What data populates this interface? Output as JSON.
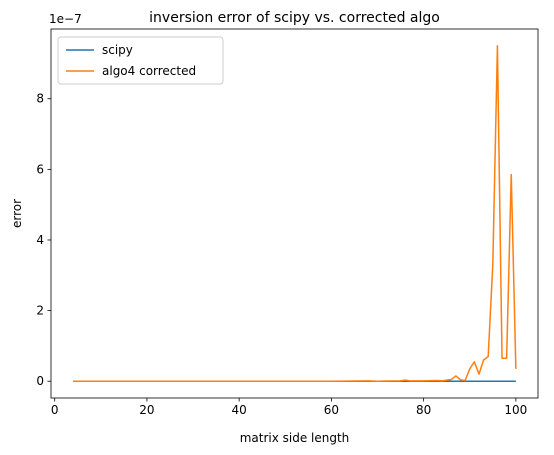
{
  "chart_data": {
    "type": "line",
    "title": "inversion error of scipy vs. corrected algo",
    "xlabel": "matrix side length",
    "ylabel": "error",
    "offset_text": "1e−7",
    "y_scale_factor": 1e-07,
    "xlim": [
      -0.8,
      104.8
    ],
    "ylim": [
      -0.475,
      9.975
    ],
    "x_ticks": [
      0,
      20,
      40,
      60,
      80,
      100
    ],
    "x_tick_labels": [
      "0",
      "20",
      "40",
      "60",
      "80",
      "100"
    ],
    "y_ticks": [
      0,
      2,
      4,
      6,
      8
    ],
    "y_tick_labels": [
      "0",
      "2",
      "4",
      "6",
      "8"
    ],
    "grid": false,
    "legend_position": "top-left",
    "colors": {
      "scipy": "#1f77b4",
      "algo4": "#ff7f0e"
    },
    "series": [
      {
        "name": "scipy",
        "x": [
          4,
          100
        ],
        "values": [
          0,
          0
        ]
      },
      {
        "name": "algo4 corrected",
        "x": [
          4,
          10,
          20,
          30,
          40,
          50,
          60,
          68,
          70,
          75,
          76,
          77,
          80,
          83,
          84,
          85,
          86,
          87,
          88,
          89,
          90,
          91,
          92,
          93,
          94,
          95,
          96,
          97,
          98,
          99,
          100
        ],
        "values": [
          0,
          0,
          0,
          0,
          0,
          0,
          0,
          0.01,
          0,
          0.01,
          0.03,
          0.01,
          0.01,
          0.02,
          0.01,
          0.03,
          0.05,
          0.15,
          0.04,
          0.02,
          0.35,
          0.55,
          0.2,
          0.6,
          0.7,
          3.3,
          9.5,
          0.65,
          0.65,
          5.85,
          0.35
        ]
      }
    ]
  }
}
